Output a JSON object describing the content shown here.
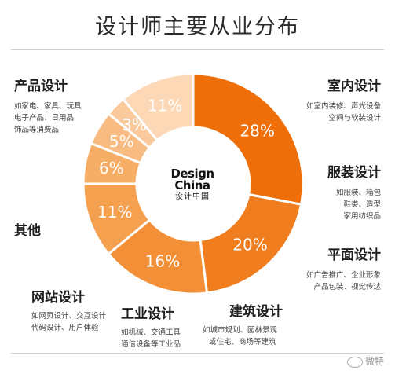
{
  "title": "设计师主要从业分布",
  "logo": {
    "line1": "Design",
    "line2": "China",
    "line3": "设计中国"
  },
  "watermark": "微特",
  "chart_data": {
    "type": "pie",
    "donut": true,
    "title": "设计师主要从业分布",
    "slices": [
      {
        "name": "产品设计",
        "value": 28,
        "label": "28%",
        "color": "#ee6f0a",
        "desc": [
          "如家电、家具、玩具",
          "电子产品、日用品",
          "饰品等消费品"
        ]
      },
      {
        "name": "室内设计",
        "value": 20,
        "label": "20%",
        "color": "#f07e1f",
        "desc": [
          "如室内装修、声光设备",
          "空间与软装设计"
        ]
      },
      {
        "name": "服装设计",
        "value": 16,
        "label": "16%",
        "color": "#f28f37",
        "desc": [
          "如服装、箱包",
          "鞋类、造型",
          "家用纺织品"
        ]
      },
      {
        "name": "平面设计",
        "value": 11,
        "label": "11%",
        "color": "#f4a04f",
        "desc": [
          "如广告推广、企业形象",
          "产品包装、视觉传达"
        ]
      },
      {
        "name": "建筑设计",
        "value": 6,
        "label": "6%",
        "color": "#f6ad66",
        "desc": [
          "如城市规划、园林景观",
          "或住宅、商场等建筑"
        ]
      },
      {
        "name": "工业设计",
        "value": 5,
        "label": "5%",
        "color": "#f8bb82",
        "desc": [
          "如机械、交通工具",
          "通信设备等工业品"
        ]
      },
      {
        "name": "网站设计",
        "value": 3,
        "label": "3%",
        "color": "#fac99c",
        "desc": [
          "如网页设计、交互设计",
          "代码设计、用户体验"
        ]
      },
      {
        "name": "其他",
        "value": 11,
        "label": "11%",
        "color": "#fcd8b6",
        "desc": []
      }
    ]
  }
}
